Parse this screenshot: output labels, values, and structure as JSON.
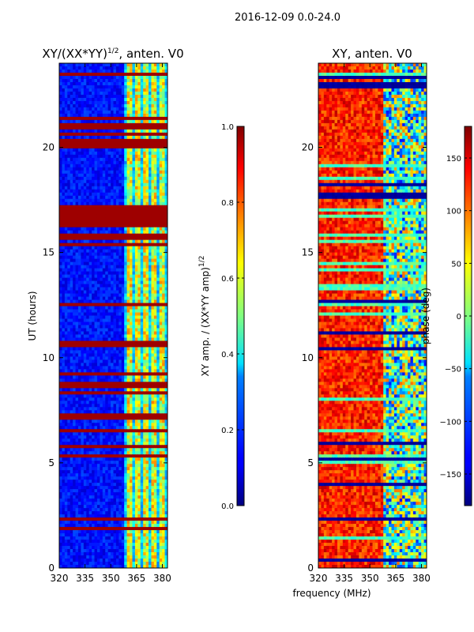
{
  "suptitle": "2016-12-09 0.0-24.0",
  "chart_data": [
    {
      "type": "heatmap",
      "title_main": "XY/(XX*YY)",
      "title_sup": "1/2",
      "title_rest": ", anten. V0",
      "xlabel": "frequency (MHz)",
      "ylabel": "UT (hours)",
      "x_range": [
        320,
        383
      ],
      "y_range": [
        0,
        24
      ],
      "x_ticks": [
        320,
        335,
        350,
        365,
        380
      ],
      "y_ticks": [
        0,
        5,
        10,
        15,
        20
      ],
      "colormap": "jet",
      "colorbar": {
        "label_main": "XY amp. / (XX*YY amp)",
        "label_sup": "1/2",
        "range": [
          0.0,
          1.0
        ],
        "ticks": [
          "0.0",
          "0.2",
          "0.4",
          "0.6",
          "0.8",
          "1.0"
        ],
        "tick_values": [
          0.0,
          0.2,
          0.4,
          0.6,
          0.8,
          1.0
        ]
      },
      "high_band_start_mhz": 358,
      "saturated_time_bands_hours": [
        [
          15.6,
          15.85
        ],
        [
          16.2,
          17.2
        ],
        [
          7.1,
          7.35
        ],
        [
          8.6,
          8.8
        ]
      ],
      "background_value": 0.08
    },
    {
      "type": "heatmap",
      "title_main": "XY, anten. V0",
      "xlabel": "frequency (MHz)",
      "ylabel": "",
      "x_range": [
        320,
        383
      ],
      "y_range": [
        0,
        24
      ],
      "x_ticks": [
        320,
        335,
        350,
        365,
        380
      ],
      "y_ticks": [
        0,
        5,
        10,
        15,
        20
      ],
      "colormap": "jet",
      "colorbar": {
        "label_main": "phase (deg)",
        "range": [
          -180,
          180
        ],
        "ticks": [
          "150",
          "100",
          "50",
          "0",
          "−50",
          "−100",
          "−150"
        ],
        "tick_values": [
          150,
          100,
          50,
          0,
          -50,
          -100,
          -150
        ]
      },
      "split_frequency_mhz": 358,
      "low_band_phase_deg": 130,
      "high_band_phase_deg": -20
    }
  ],
  "shared_xlabel": "frequency (MHz)"
}
